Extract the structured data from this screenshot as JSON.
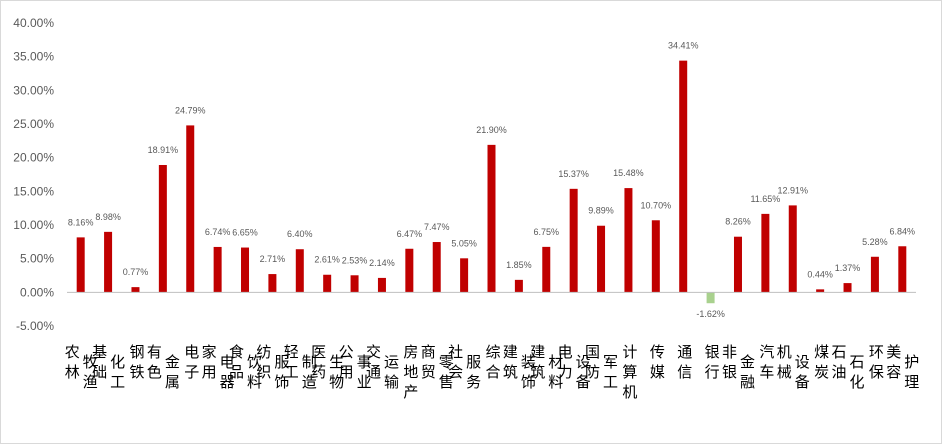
{
  "chart_data": {
    "type": "bar",
    "title": "",
    "xlabel": "",
    "ylabel": "",
    "ylim": [
      -5,
      40
    ],
    "yticks": [
      -5,
      0,
      5,
      10,
      15,
      20,
      25,
      30,
      35,
      40
    ],
    "ytick_labels": [
      "-5.00%",
      "0.00%",
      "5.00%",
      "10.00%",
      "15.00%",
      "20.00%",
      "25.00%",
      "30.00%",
      "35.00%",
      "40.00%"
    ],
    "grid": false,
    "legend": "none",
    "categories": [
      "农林牧渔",
      "基础化工",
      "钢铁",
      "有色金属",
      "电子",
      "家用电器",
      "食品饮料",
      "纺织服饰",
      "轻工制造",
      "医药生物",
      "公用事业",
      "交通运输",
      "房地产",
      "商贸零售",
      "社会服务",
      "综合",
      "建筑装饰",
      "建筑材料",
      "电力设备",
      "国防军工",
      "计算机",
      "传媒",
      "通信",
      "银行",
      "非银金融",
      "汽车",
      "机械设备",
      "煤炭",
      "石油石化",
      "环保",
      "美容护理"
    ],
    "values": [
      8.16,
      8.98,
      0.77,
      18.91,
      24.79,
      6.74,
      6.65,
      2.71,
      6.4,
      2.61,
      2.53,
      2.14,
      6.47,
      7.47,
      5.05,
      21.9,
      1.85,
      6.75,
      15.37,
      9.89,
      15.48,
      10.7,
      34.41,
      -1.62,
      8.26,
      11.65,
      12.91,
      0.44,
      1.37,
      5.28,
      6.84
    ],
    "value_labels": [
      "8.16%",
      "8.98%",
      "0.77%",
      "18.91%",
      "24.79%",
      "6.74%",
      "6.65%",
      "2.71%",
      "6.40%",
      "2.61%",
      "2.53%",
      "2.14%",
      "6.47%",
      "7.47%",
      "5.05%",
      "21.90%",
      "1.85%",
      "6.75%",
      "15.37%",
      "9.89%",
      "15.48%",
      "10.70%",
      "34.41%",
      "-1.62%",
      "8.26%",
      "11.65%",
      "12.91%",
      "0.44%",
      "1.37%",
      "5.28%",
      "6.84%"
    ],
    "colors": {
      "positive": "#c00000",
      "negative": "#a9d18e",
      "axis": "#bfbfbf"
    }
  }
}
